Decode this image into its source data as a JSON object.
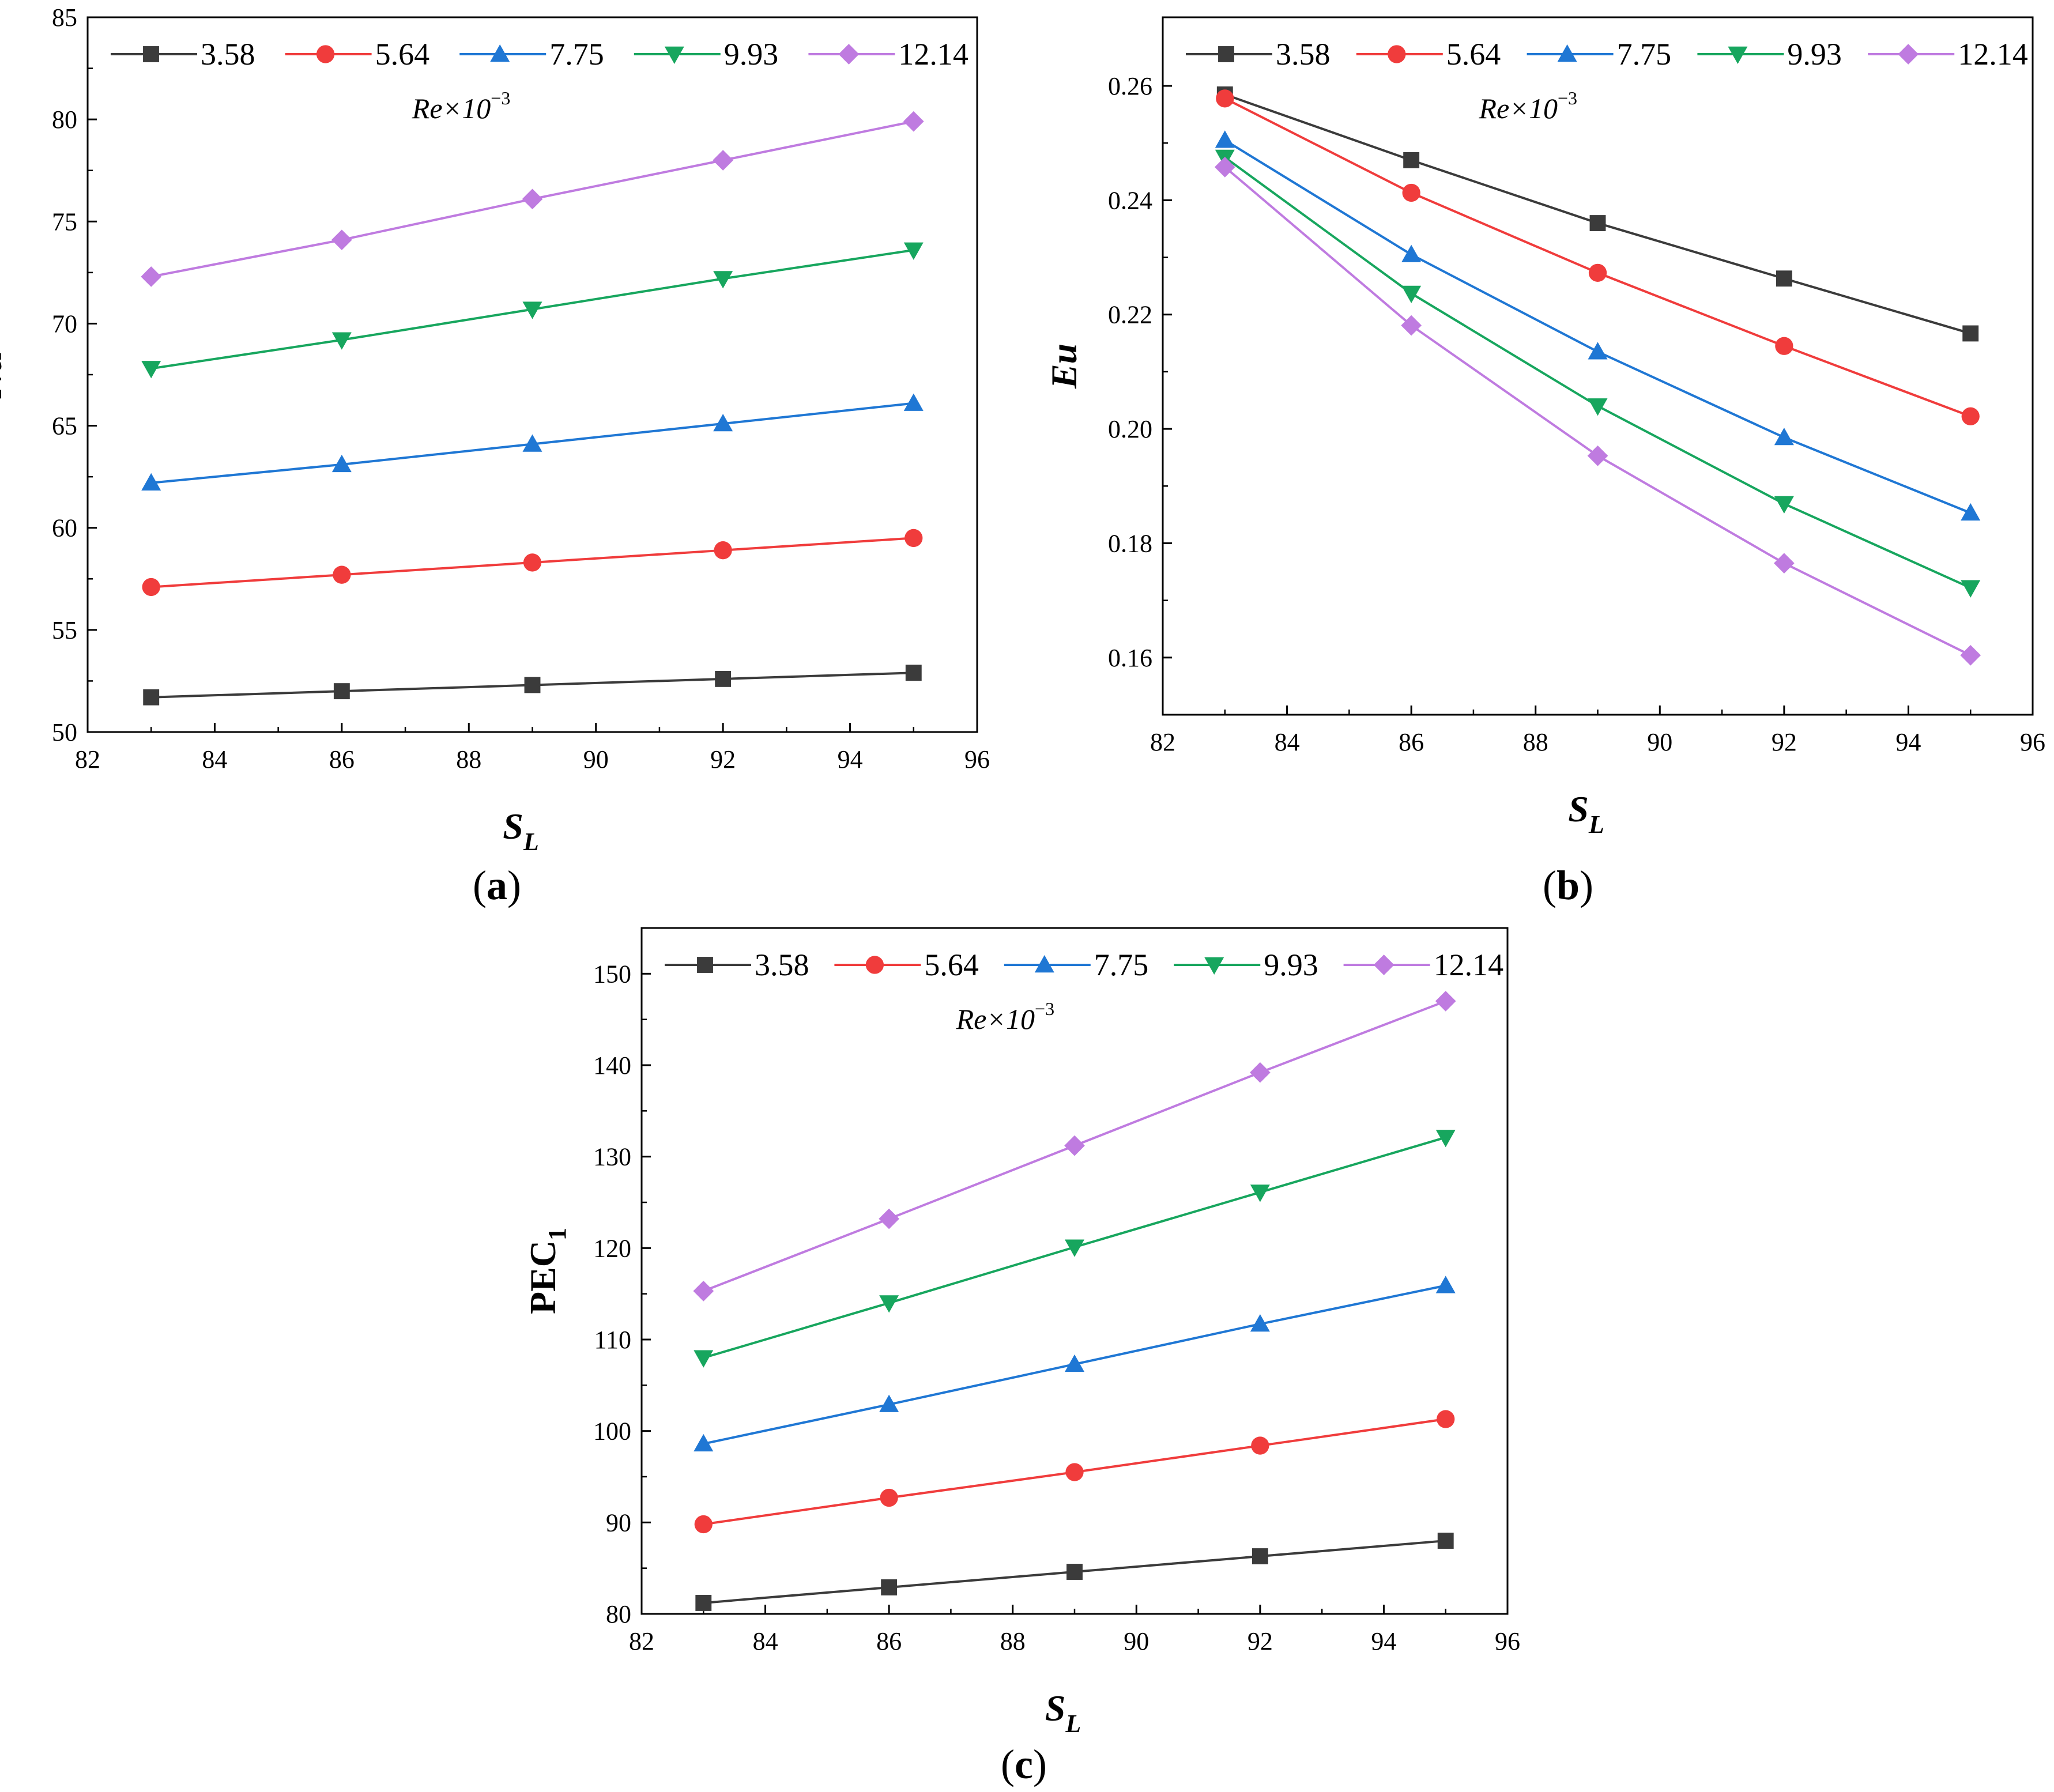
{
  "colors": {
    "3.58": "#3b3b3b",
    "5.64": "#f03c3c",
    "7.75": "#1f77d4",
    "9.93": "#17a65e",
    "12.14": "#bf7be0"
  },
  "chart_data": [
    {
      "id": "a",
      "type": "line",
      "panel_label": "(a)",
      "panel_letter": "a",
      "title": "",
      "xlabel": "S",
      "xlabel_sub": "L",
      "ylabel": "Nu",
      "xlim": [
        82,
        96
      ],
      "ylim": [
        50,
        85
      ],
      "xticks": [
        82,
        84,
        86,
        88,
        90,
        92,
        94,
        96
      ],
      "yticks": [
        50,
        55,
        60,
        65,
        70,
        75,
        80,
        85
      ],
      "ytick_labels": [
        "50",
        "55",
        "60",
        "65",
        "70",
        "75",
        "80",
        "85"
      ],
      "legend_title": "Re×10",
      "legend_title_exp": "−3",
      "x": [
        83,
        86,
        89,
        92,
        95
      ],
      "series": [
        {
          "name": "3.58",
          "marker": "square",
          "values": [
            51.7,
            52.0,
            52.3,
            52.6,
            52.9
          ]
        },
        {
          "name": "5.64",
          "marker": "circle",
          "values": [
            57.1,
            57.7,
            58.3,
            58.9,
            59.5
          ]
        },
        {
          "name": "7.75",
          "marker": "triangle-up",
          "values": [
            62.2,
            63.1,
            64.1,
            65.1,
            66.1
          ]
        },
        {
          "name": "9.93",
          "marker": "triangle-down",
          "values": [
            67.8,
            69.2,
            70.7,
            72.2,
            73.6
          ]
        },
        {
          "name": "12.14",
          "marker": "diamond",
          "values": [
            72.3,
            74.1,
            76.1,
            78.0,
            79.9
          ]
        }
      ]
    },
    {
      "id": "b",
      "type": "line",
      "panel_label": "(b)",
      "panel_letter": "b",
      "title": "",
      "xlabel": "S",
      "xlabel_sub": "L",
      "ylabel": "Eu",
      "xlim": [
        82,
        96
      ],
      "ylim": [
        0.15,
        0.272
      ],
      "xticks": [
        82,
        84,
        86,
        88,
        90,
        92,
        94,
        96
      ],
      "yticks": [
        0.16,
        0.18,
        0.2,
        0.22,
        0.24,
        0.26
      ],
      "ytick_labels": [
        "0.16",
        "0.18",
        "0.20",
        "0.22",
        "0.24",
        "0.26"
      ],
      "legend_title": "Re×10",
      "legend_title_exp": "−3",
      "x": [
        83,
        86,
        89,
        92,
        95
      ],
      "series": [
        {
          "name": "3.58",
          "marker": "square",
          "values": [
            0.2585,
            0.247,
            0.236,
            0.2263,
            0.2167
          ]
        },
        {
          "name": "5.64",
          "marker": "circle",
          "values": [
            0.2578,
            0.2413,
            0.2273,
            0.2145,
            0.2022
          ]
        },
        {
          "name": "7.75",
          "marker": "triangle-up",
          "values": [
            0.2505,
            0.2305,
            0.2135,
            0.1985,
            0.1853
          ]
        },
        {
          "name": "9.93",
          "marker": "triangle-down",
          "values": [
            0.2475,
            0.2237,
            0.204,
            0.1869,
            0.1722
          ]
        },
        {
          "name": "12.14",
          "marker": "diamond",
          "values": [
            0.2458,
            0.2181,
            0.1953,
            0.1765,
            0.1604
          ]
        }
      ]
    },
    {
      "id": "c",
      "type": "line",
      "panel_label": "(c)",
      "panel_letter": "c",
      "title": "",
      "xlabel": "S",
      "xlabel_sub": "L",
      "ylabel": "PEC",
      "ylabel_sub": "1",
      "xlim": [
        82,
        96
      ],
      "ylim": [
        80,
        155
      ],
      "xticks": [
        82,
        84,
        86,
        88,
        90,
        92,
        94,
        96
      ],
      "yticks": [
        80,
        90,
        100,
        110,
        120,
        130,
        140,
        150
      ],
      "ytick_labels": [
        "80",
        "90",
        "100",
        "110",
        "120",
        "130",
        "140",
        "150"
      ],
      "legend_title": "Re×10",
      "legend_title_exp": "−3",
      "x": [
        83,
        86,
        89,
        92,
        95
      ],
      "series": [
        {
          "name": "3.58",
          "marker": "square",
          "values": [
            81.2,
            82.9,
            84.6,
            86.3,
            88.0
          ]
        },
        {
          "name": "5.64",
          "marker": "circle",
          "values": [
            89.8,
            92.7,
            95.5,
            98.4,
            101.3
          ]
        },
        {
          "name": "7.75",
          "marker": "triangle-up",
          "values": [
            98.6,
            102.9,
            107.3,
            111.7,
            115.9
          ]
        },
        {
          "name": "9.93",
          "marker": "triangle-down",
          "values": [
            108.0,
            114.0,
            120.1,
            126.1,
            132.1
          ]
        },
        {
          "name": "12.14",
          "marker": "diamond",
          "values": [
            115.3,
            123.2,
            131.2,
            139.2,
            147.0
          ]
        }
      ]
    }
  ]
}
